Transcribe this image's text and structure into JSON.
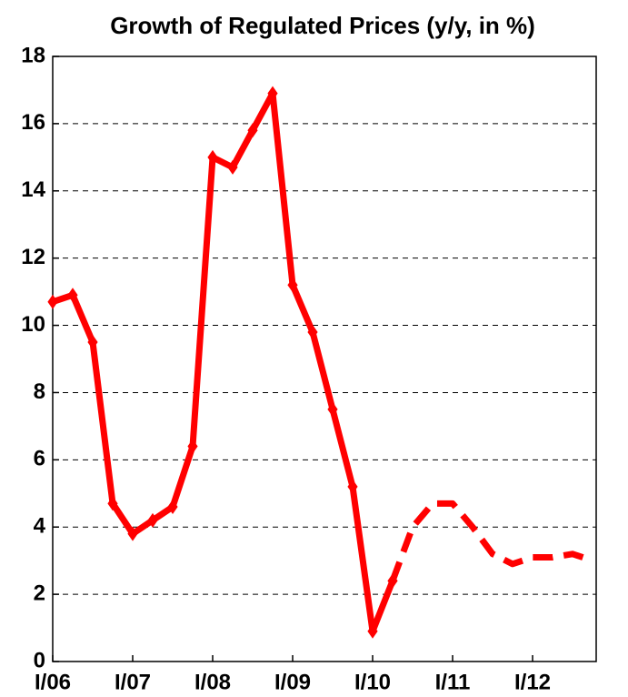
{
  "chart_data": {
    "type": "line",
    "title": "Growth of Regulated Prices (y/y, in %)",
    "categories": [
      "I/06",
      null,
      null,
      null,
      "I/07",
      null,
      null,
      null,
      "I/08",
      null,
      null,
      null,
      "I/09",
      null,
      null,
      null,
      "I/10",
      null,
      null,
      null,
      "I/11",
      null,
      null,
      null,
      "I/12",
      null,
      null,
      null
    ],
    "series": [
      {
        "color": "#ff0000",
        "dashed": false,
        "markers": true,
        "values": [
          10.7,
          10.9,
          9.5,
          4.7,
          3.8,
          4.2,
          4.6,
          6.4,
          15.0,
          14.7,
          15.8,
          16.9,
          11.2,
          9.8,
          7.5,
          5.2,
          0.9,
          2.4,
          null,
          null,
          null,
          null,
          null,
          null,
          null,
          null,
          null,
          null
        ]
      },
      {
        "color": "#ff0000",
        "dashed": true,
        "markers": false,
        "values": [
          null,
          null,
          null,
          null,
          null,
          null,
          null,
          null,
          null,
          null,
          null,
          null,
          null,
          null,
          null,
          null,
          null,
          2.4,
          4.0,
          4.7,
          4.7,
          4.0,
          3.2,
          2.9,
          3.1,
          3.1,
          3.2,
          3.0
        ]
      }
    ],
    "ylim": [
      0,
      18
    ],
    "yticks": [
      0,
      2,
      4,
      6,
      8,
      10,
      12,
      14,
      16,
      18
    ],
    "grid": true
  }
}
